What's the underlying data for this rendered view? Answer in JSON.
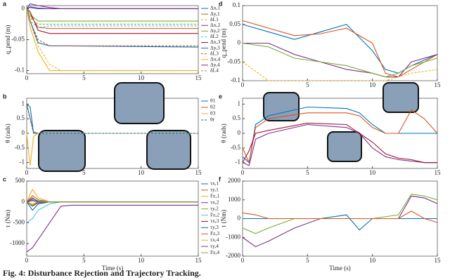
{
  "chart_data": [
    {
      "type": "line",
      "panel": "a",
      "ylabel": "q_pend (m)",
      "x": [
        0,
        0.3,
        1,
        2,
        3,
        15
      ],
      "xlim": [
        0,
        15
      ],
      "xticks": [
        0,
        5,
        10,
        15
      ],
      "ylim": [
        -0.105,
        0.005
      ],
      "yticks": [
        0,
        -0.05,
        -0.1
      ],
      "legend": "right",
      "series": [
        {
          "name": "Δx,1",
          "color": "#0072BD",
          "values": [
            0,
            0.002,
            0,
            0,
            0,
            0
          ]
        },
        {
          "name": "Δy,1",
          "color": "#D95319",
          "values": [
            0,
            -0.01,
            -0.03,
            -0.032,
            -0.032,
            -0.032
          ]
        },
        {
          "name": "δL1",
          "color": "#EDB120",
          "dashed": true,
          "values": [
            0,
            -0.02,
            -0.06,
            -0.09,
            -0.1,
            -0.1
          ]
        },
        {
          "name": "Δx,2",
          "color": "#7E2F8E",
          "values": [
            0,
            0.003,
            0.001,
            0,
            0,
            0
          ]
        },
        {
          "name": "Δy,2",
          "color": "#77AC30",
          "values": [
            0,
            -0.01,
            -0.02,
            -0.02,
            -0.02,
            -0.02
          ]
        },
        {
          "name": "δL2",
          "color": "#4DBEEE",
          "dashed": true,
          "values": [
            0,
            -0.02,
            -0.03,
            -0.028,
            -0.028,
            -0.028
          ]
        },
        {
          "name": "Δx,3",
          "color": "#A2142F",
          "values": [
            0,
            -0.005,
            -0.035,
            -0.04,
            -0.04,
            -0.04
          ]
        },
        {
          "name": "Δy,3",
          "color": "#0072BD",
          "values": [
            0,
            -0.02,
            -0.055,
            -0.06,
            -0.06,
            -0.062
          ]
        },
        {
          "name": "δL3",
          "color": "#D95319",
          "dashed": true,
          "values": [
            0,
            -0.02,
            -0.05,
            -0.06,
            -0.06,
            -0.06
          ]
        },
        {
          "name": "Δx,4",
          "color": "#EDB120",
          "values": [
            0,
            -0.03,
            -0.07,
            -0.1,
            -0.1,
            -0.1
          ]
        },
        {
          "name": "Δy,4",
          "color": "#7E2F8E",
          "values": [
            0,
            0.008,
            0.005,
            0.002,
            0,
            0
          ]
        },
        {
          "name": "δL4",
          "color": "#77AC30",
          "dashed": true,
          "values": [
            0,
            -0.015,
            -0.025,
            -0.025,
            -0.025,
            -0.025
          ]
        }
      ]
    },
    {
      "type": "line",
      "panel": "b",
      "ylabel": "θ (rads)",
      "x": [
        0,
        0.3,
        0.6,
        1,
        15
      ],
      "xlim": [
        0,
        15
      ],
      "xticks": [
        0,
        5,
        10,
        15
      ],
      "ylim": [
        -1.2,
        1.2
      ],
      "yticks": [
        -1,
        -0.5,
        0,
        0.5,
        1
      ],
      "legend": "right",
      "series": [
        {
          "name": "θ1",
          "color": "#0072BD",
          "values": [
            1,
            0.9,
            0,
            0,
            0
          ]
        },
        {
          "name": "θ2",
          "color": "#D95319",
          "values": [
            1,
            0.5,
            0.05,
            0,
            0
          ]
        },
        {
          "name": "θ3",
          "color": "#EDB120",
          "values": [
            0,
            -1.1,
            -0.1,
            0,
            0
          ]
        },
        {
          "name": "θr",
          "color": "#0072BD",
          "dashed": true,
          "values": [
            1,
            0.5,
            0,
            0,
            0
          ]
        }
      ]
    },
    {
      "type": "line",
      "panel": "c",
      "ylabel": "τ (Nm)",
      "xlabel": "Time (s)",
      "x": [
        0,
        0.5,
        1,
        2,
        3,
        4,
        15
      ],
      "xlim": [
        0,
        15
      ],
      "xticks": [
        0,
        5,
        10,
        15
      ],
      "ylim": [
        -1300,
        500
      ],
      "yticks": [
        -1000,
        -500,
        0,
        500
      ],
      "legend": "right",
      "series": [
        {
          "name": "τx,1",
          "color": "#0072BD",
          "values": [
            0,
            -200,
            -50,
            0,
            0,
            0,
            0
          ]
        },
        {
          "name": "τy,1",
          "color": "#D95319",
          "values": [
            0,
            100,
            0,
            0,
            0,
            0,
            0
          ]
        },
        {
          "name": "Fz,1",
          "color": "#EDB120",
          "values": [
            0,
            300,
            100,
            0,
            0,
            0,
            0
          ]
        },
        {
          "name": "τx,2",
          "color": "#7E2F8E",
          "values": [
            -1200,
            -1100,
            -900,
            -500,
            -100,
            -80,
            -80
          ]
        },
        {
          "name": "τy,2",
          "color": "#77AC30",
          "values": [
            0,
            50,
            0,
            0,
            0,
            0,
            0
          ]
        },
        {
          "name": "Fz,2",
          "color": "#4DBEEE",
          "values": [
            -500,
            -400,
            -200,
            -50,
            0,
            0,
            0
          ]
        },
        {
          "name": "τx,3",
          "color": "#A2142F",
          "values": [
            0,
            -100,
            -20,
            0,
            0,
            0,
            0
          ]
        },
        {
          "name": "τy,3",
          "color": "#0072BD",
          "values": [
            0,
            80,
            20,
            0,
            0,
            0,
            0
          ]
        },
        {
          "name": "Fz,3",
          "color": "#D95319",
          "values": [
            0,
            150,
            50,
            0,
            0,
            0,
            0
          ]
        },
        {
          "name": "τx,4",
          "color": "#EDB120",
          "values": [
            0,
            -50,
            0,
            0,
            0,
            0,
            0
          ]
        },
        {
          "name": "τy,4",
          "color": "#7E2F8E",
          "values": [
            0,
            30,
            0,
            0,
            0,
            0,
            0
          ]
        },
        {
          "name": "Fz,4",
          "color": "#77AC30",
          "values": [
            0,
            -80,
            0,
            0,
            0,
            0,
            0
          ]
        }
      ]
    },
    {
      "type": "line",
      "panel": "d",
      "ylabel": "q_pend (m)",
      "x": [
        0,
        2,
        4,
        6,
        8,
        10,
        11,
        12,
        13,
        15
      ],
      "xlim": [
        0,
        15
      ],
      "xticks": [
        0,
        5,
        10,
        15
      ],
      "ylim": [
        -0.1,
        0.1
      ],
      "yticks": [
        -0.1,
        -0.05,
        0,
        0.05,
        0.1
      ],
      "series": [
        {
          "color": "#0072BD",
          "values": [
            0.05,
            0.03,
            0.01,
            0.03,
            0.05,
            -0.02,
            -0.07,
            -0.08,
            -0.06,
            -0.03
          ]
        },
        {
          "color": "#D95319",
          "values": [
            0.06,
            0.04,
            0.02,
            0.025,
            0.04,
            0,
            -0.08,
            -0.09,
            -0.07,
            -0.03
          ]
        },
        {
          "color": "#7E2F8E",
          "values": [
            0,
            0,
            -0.03,
            -0.05,
            -0.07,
            -0.08,
            -0.09,
            -0.09,
            -0.05,
            -0.03
          ]
        },
        {
          "color": "#77AC30",
          "values": [
            0,
            -0.01,
            -0.04,
            -0.05,
            -0.06,
            -0.08,
            -0.09,
            -0.08,
            -0.06,
            -0.04
          ]
        },
        {
          "color": "#EDB120",
          "dashed": true,
          "values": [
            -0.05,
            -0.1,
            -0.1,
            -0.1,
            -0.1,
            -0.1,
            -0.1,
            -0.09,
            -0.08,
            -0.07
          ]
        }
      ]
    },
    {
      "type": "line",
      "panel": "e",
      "ylabel": "θ (rads)",
      "x": [
        0,
        0.5,
        1,
        2,
        5,
        8,
        9,
        10,
        11,
        12,
        13,
        14,
        15
      ],
      "xlim": [
        0,
        15
      ],
      "xticks": [
        0,
        5,
        10,
        15
      ],
      "ylim": [
        -1.2,
        1.2
      ],
      "yticks": [
        -1,
        -0.5,
        0,
        0.5,
        1
      ],
      "series": [
        {
          "color": "#0072BD",
          "values": [
            -0.8,
            -1,
            0.3,
            0.6,
            0.9,
            0.85,
            0.7,
            0.3,
            0,
            0,
            0,
            0,
            0
          ]
        },
        {
          "color": "#D95319",
          "values": [
            -0.5,
            -1,
            0.2,
            0.5,
            0.7,
            0.7,
            0.6,
            0.2,
            0,
            0,
            0.8,
            0.5,
            0
          ]
        },
        {
          "color": "#7E2F8E",
          "values": [
            -1,
            -1.1,
            -0.2,
            0,
            0.3,
            0.2,
            0,
            -0.5,
            -0.8,
            -0.9,
            -0.95,
            -1,
            -1
          ]
        },
        {
          "color": "#A2142F",
          "values": [
            -1,
            -0.6,
            0,
            0.1,
            0.35,
            0.3,
            0,
            -0.3,
            -0.7,
            -0.85,
            -0.9,
            -1,
            -1
          ]
        }
      ]
    },
    {
      "type": "line",
      "panel": "f",
      "ylabel": "τ (Nm)",
      "xlabel": "Time (s)",
      "x": [
        0,
        1,
        2,
        4,
        6,
        8,
        9,
        10,
        12,
        13,
        14,
        15
      ],
      "xlim": [
        0,
        15
      ],
      "xticks": [
        0,
        5,
        10,
        15
      ],
      "ylim": [
        -2000,
        2000
      ],
      "yticks": [
        -2000,
        -1000,
        0,
        1000,
        2000
      ],
      "series": [
        {
          "color": "#7E2F8E",
          "values": [
            -1000,
            -1500,
            -1200,
            -500,
            0,
            0,
            0,
            0,
            0,
            1200,
            1100,
            800
          ]
        },
        {
          "color": "#77AC30",
          "values": [
            -500,
            -800,
            -500,
            0,
            0,
            0,
            0,
            0,
            200,
            1300,
            1200,
            1000
          ]
        },
        {
          "color": "#0072BD",
          "values": [
            0,
            0,
            0,
            0,
            0,
            200,
            -600,
            0,
            0,
            0,
            0,
            0
          ]
        },
        {
          "color": "#D95319",
          "values": [
            300,
            200,
            0,
            0,
            0,
            0,
            0,
            0,
            0,
            400,
            0,
            -200
          ]
        }
      ]
    }
  ],
  "caption": "Fig. 4: Disturbance Rejection and Trajectory Tracking."
}
